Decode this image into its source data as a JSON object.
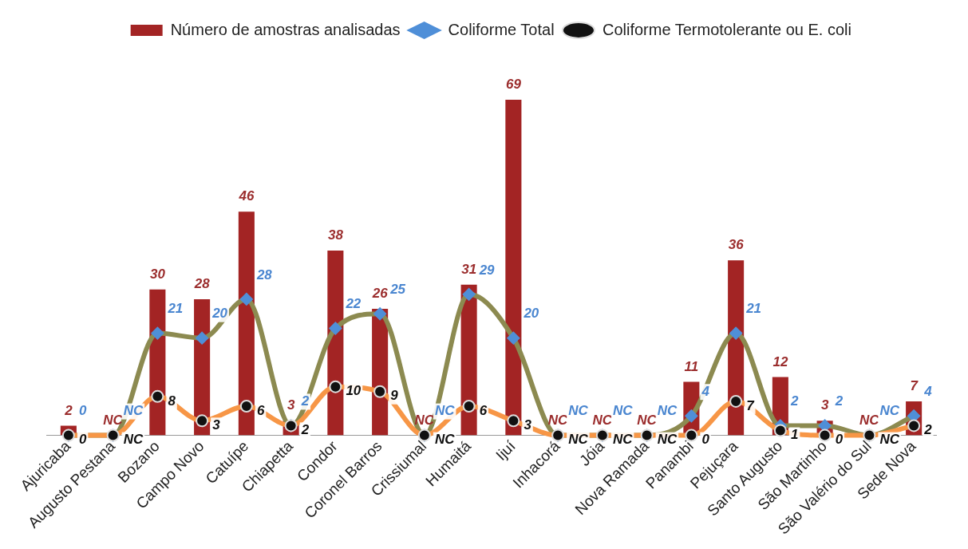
{
  "chart_data": {
    "type": "bar",
    "legend": "top",
    "grid": false,
    "categories": [
      "Ajuricaba",
      "Augusto Pestana",
      "Bozano",
      "Campo Novo",
      "Catuípe",
      "Chiapetta",
      "Condor",
      "Coronel Barros",
      "Crissiumal",
      "Humaitá",
      "Ijuí",
      "Inhacorá",
      "Jóia",
      "Nova Ramada",
      "Panambi",
      "Pejuçara",
      "Santo Augusto",
      "São Martinho",
      "São Valério do Sul",
      "Sede Nova"
    ],
    "series": [
      {
        "name": "Número de amostras analisadas",
        "type": "bar",
        "color": "#a32424",
        "values": [
          2,
          0,
          30,
          28,
          46,
          3,
          38,
          26,
          0,
          31,
          69,
          0,
          0,
          0,
          11,
          36,
          12,
          3,
          0,
          7
        ],
        "value_labels": [
          "2",
          "NC",
          "30",
          "28",
          "46",
          "3",
          "38",
          "26",
          "NC",
          "31",
          "69",
          "NC",
          "NC",
          "NC",
          "11",
          "36",
          "12",
          "3",
          "NC",
          "7"
        ]
      },
      {
        "name": "Coliforme Total",
        "type": "line",
        "color": "#8c8a50",
        "marker": "diamond",
        "values": [
          0,
          0,
          21,
          20,
          28,
          2,
          22,
          25,
          0,
          29,
          20,
          0,
          0,
          0,
          4,
          21,
          2,
          2,
          0,
          4
        ],
        "value_labels": [
          "0",
          "NC",
          "21",
          "20",
          "28",
          "2",
          "22",
          "25",
          "NC",
          "29",
          "20",
          "NC",
          "NC",
          "NC",
          "4",
          "21",
          "2",
          "2",
          "NC",
          "4"
        ]
      },
      {
        "name": "Coliforme Termotolerante ou E. coli",
        "type": "line",
        "color": "#f79646",
        "marker": "circle",
        "values": [
          0,
          0,
          8,
          3,
          6,
          2,
          10,
          9,
          0,
          6,
          3,
          0,
          0,
          0,
          0,
          7,
          1,
          0,
          0,
          2
        ],
        "value_labels": [
          "0",
          "NC",
          "8",
          "3",
          "6",
          "2",
          "10",
          "9",
          "NC",
          "6",
          "3",
          "NC",
          "NC",
          "NC",
          "0",
          "7",
          "1",
          "0",
          "NC",
          "2"
        ]
      }
    ]
  }
}
